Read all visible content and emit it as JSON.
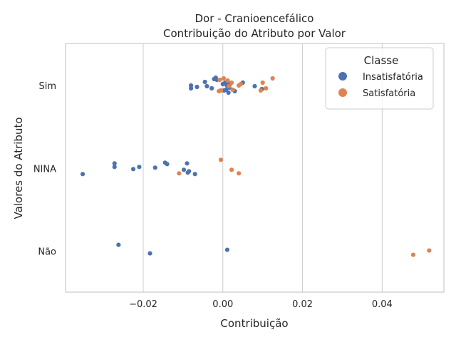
{
  "chart_data": {
    "type": "scatter",
    "title": "Dor - Cranioencefálico",
    "subtitle": "Contribuição do Atributo por Valor",
    "xlabel": "Contribuição",
    "ylabel": "Valores do Atributo",
    "xlim": [
      -0.0395,
      0.0555
    ],
    "xticks": [
      -0.02,
      0.0,
      0.02,
      0.04
    ],
    "xtick_labels": [
      "−0.02",
      "0.00",
      "0.02",
      "0.04"
    ],
    "categories": [
      "Sim",
      "NINA",
      "Não"
    ],
    "grid": "vertical",
    "legend": {
      "title": "Classe",
      "position": "top-right"
    },
    "series": [
      {
        "name": "Insatisfatória",
        "color": "#4c72b0",
        "points": [
          {
            "x": -0.0045,
            "y": "Sim",
            "j": 0.05
          },
          {
            "x": -0.004,
            "y": "Sim",
            "j": -0.01
          },
          {
            "x": -0.0028,
            "y": "Sim",
            "j": -0.04
          },
          {
            "x": -0.0022,
            "y": "Sim",
            "j": 0.09
          },
          {
            "x": -0.0018,
            "y": "Sim",
            "j": 0.11
          },
          {
            "x": -0.0015,
            "y": "Sim",
            "j": 0.08
          },
          {
            "x": -0.008,
            "y": "Sim",
            "j": 0.0
          },
          {
            "x": -0.008,
            "y": "Sim",
            "j": -0.04
          },
          {
            "x": -0.0065,
            "y": "Sim",
            "j": -0.02
          },
          {
            "x": -0.0005,
            "y": "Sim",
            "j": -0.07
          },
          {
            "x": 0.0,
            "y": "Sim",
            "j": 0.02
          },
          {
            "x": 0.0003,
            "y": "Sim",
            "j": -0.07
          },
          {
            "x": 0.0006,
            "y": "Sim",
            "j": 0.04
          },
          {
            "x": 0.0008,
            "y": "Sim",
            "j": -0.06
          },
          {
            "x": 0.001,
            "y": "Sim",
            "j": 0.0
          },
          {
            "x": 0.0012,
            "y": "Sim",
            "j": 0.06
          },
          {
            "x": 0.0014,
            "y": "Sim",
            "j": -0.1
          },
          {
            "x": 0.0016,
            "y": "Sim",
            "j": -0.03
          },
          {
            "x": 0.0018,
            "y": "Sim",
            "j": 0.02
          },
          {
            "x": 0.0025,
            "y": "Sim",
            "j": -0.06
          },
          {
            "x": 0.003,
            "y": "Sim",
            "j": -0.08
          },
          {
            "x": 0.005,
            "y": "Sim",
            "j": 0.04
          },
          {
            "x": 0.008,
            "y": "Sim",
            "j": -0.01
          },
          {
            "x": 0.0098,
            "y": "Sim",
            "j": -0.05
          },
          {
            "x": -0.0352,
            "y": "NINA",
            "j": -0.08
          },
          {
            "x": -0.0272,
            "y": "NINA",
            "j": 0.07
          },
          {
            "x": -0.0272,
            "y": "NINA",
            "j": 0.02
          },
          {
            "x": -0.0225,
            "y": "NINA",
            "j": -0.01
          },
          {
            "x": -0.021,
            "y": "NINA",
            "j": 0.02
          },
          {
            "x": -0.017,
            "y": "NINA",
            "j": 0.01
          },
          {
            "x": -0.0145,
            "y": "NINA",
            "j": 0.08
          },
          {
            "x": -0.014,
            "y": "NINA",
            "j": 0.06
          },
          {
            "x": -0.0098,
            "y": "NINA",
            "j": -0.02
          },
          {
            "x": -0.009,
            "y": "NINA",
            "j": 0.07
          },
          {
            "x": -0.0088,
            "y": "NINA",
            "j": -0.06
          },
          {
            "x": -0.0085,
            "y": "NINA",
            "j": -0.04
          },
          {
            "x": -0.007,
            "y": "NINA",
            "j": -0.08
          },
          {
            "x": -0.0262,
            "y": "Não",
            "j": 0.09
          },
          {
            "x": -0.0183,
            "y": "Não",
            "j": -0.03
          },
          {
            "x": 0.0011,
            "y": "Não",
            "j": 0.02
          }
        ]
      },
      {
        "name": "Satisfatória",
        "color": "#dd8452",
        "points": [
          {
            "x": -0.001,
            "y": "Sim",
            "j": -0.08
          },
          {
            "x": -0.0008,
            "y": "Sim",
            "j": 0.08
          },
          {
            "x": -0.0005,
            "y": "Sim",
            "j": -0.07
          },
          {
            "x": 0.0002,
            "y": "Sim",
            "j": 0.1
          },
          {
            "x": 0.0012,
            "y": "Sim",
            "j": 0.07
          },
          {
            "x": 0.0015,
            "y": "Sim",
            "j": -0.01
          },
          {
            "x": 0.0022,
            "y": "Sim",
            "j": 0.04
          },
          {
            "x": 0.0025,
            "y": "Sim",
            "j": -0.06
          },
          {
            "x": 0.004,
            "y": "Sim",
            "j": 0.0
          },
          {
            "x": 0.0045,
            "y": "Sim",
            "j": 0.02
          },
          {
            "x": 0.0095,
            "y": "Sim",
            "j": -0.07
          },
          {
            "x": 0.01,
            "y": "Sim",
            "j": 0.04
          },
          {
            "x": 0.0108,
            "y": "Sim",
            "j": -0.04
          },
          {
            "x": 0.0125,
            "y": "Sim",
            "j": 0.1
          },
          {
            "x": -0.011,
            "y": "NINA",
            "j": -0.07
          },
          {
            "x": -0.0005,
            "y": "NINA",
            "j": 0.12
          },
          {
            "x": 0.0022,
            "y": "NINA",
            "j": -0.02
          },
          {
            "x": 0.004,
            "y": "NINA",
            "j": -0.07
          },
          {
            "x": 0.0478,
            "y": "Não",
            "j": -0.05
          },
          {
            "x": 0.0518,
            "y": "Não",
            "j": 0.01
          }
        ]
      }
    ]
  }
}
